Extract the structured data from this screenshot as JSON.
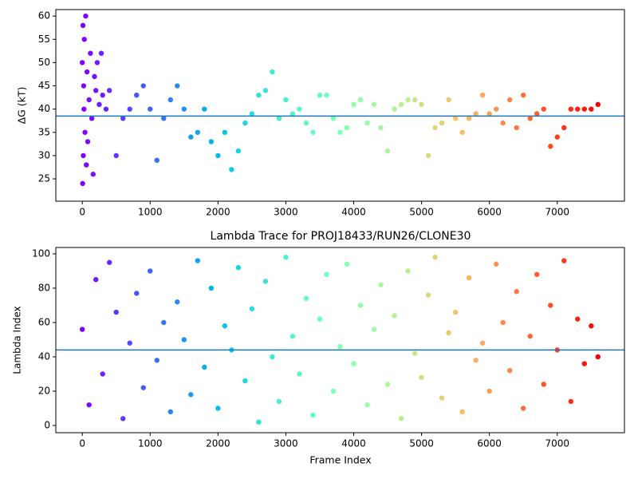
{
  "chart_data": [
    {
      "type": "scatter",
      "ylabel": "ΔG (kT)",
      "colormap": "rainbow",
      "hline": 38.5,
      "hline_color": "#1f77b4",
      "x": [
        0,
        5,
        10,
        15,
        20,
        25,
        30,
        40,
        50,
        60,
        70,
        80,
        100,
        120,
        140,
        160,
        180,
        200,
        220,
        250,
        280,
        300,
        350,
        400,
        500,
        600,
        700,
        800,
        900,
        1000,
        1100,
        1200,
        1300,
        1400,
        1500,
        1600,
        1700,
        1800,
        1900,
        2000,
        2100,
        2200,
        2300,
        2400,
        2500,
        2600,
        2700,
        2800,
        2900,
        3000,
        3100,
        3200,
        3300,
        3400,
        3500,
        3600,
        3700,
        3800,
        3900,
        4000,
        4100,
        4200,
        4300,
        4400,
        4500,
        4600,
        4700,
        4800,
        4900,
        5000,
        5100,
        5200,
        5300,
        5400,
        5500,
        5600,
        5700,
        5800,
        5900,
        6000,
        6100,
        6200,
        6300,
        6400,
        6500,
        6600,
        6700,
        6800,
        6900,
        7000,
        7100,
        7200,
        7300,
        7400,
        7500,
        7600
      ],
      "y": [
        50,
        24,
        58,
        30,
        45,
        40,
        55,
        35,
        60,
        28,
        48,
        33,
        42,
        52,
        38,
        26,
        47,
        44,
        50,
        41,
        52,
        43,
        40,
        44,
        30,
        38,
        40,
        43,
        45,
        40,
        29,
        38,
        42,
        45,
        40,
        34,
        35,
        40,
        33,
        30,
        35,
        27,
        31,
        37,
        39,
        43,
        44,
        48,
        38,
        42,
        39,
        40,
        37,
        35,
        43,
        43,
        38,
        35,
        36,
        41,
        42,
        37,
        41,
        36,
        31,
        40,
        41,
        42,
        42,
        41,
        30,
        36,
        37,
        42,
        38,
        35,
        38,
        39,
        43,
        39,
        40,
        37,
        42,
        36,
        43,
        38,
        39,
        40,
        32,
        34,
        36,
        40,
        40,
        40,
        40,
        41
      ],
      "xlim": [
        -390,
        7990
      ],
      "ylim": [
        20.2,
        61.4
      ],
      "xticks": [
        0,
        1000,
        2000,
        3000,
        4000,
        5000,
        6000,
        7000
      ],
      "yticks": [
        25,
        30,
        35,
        40,
        45,
        50,
        55,
        60
      ]
    },
    {
      "type": "scatter",
      "title": "Lambda Trace for PROJ18433/RUN26/CLONE30",
      "xlabel": "Frame Index",
      "ylabel": "Lambda Index",
      "colormap": "rainbow",
      "hline": 44,
      "hline_color": "#1f77b4",
      "x": [
        0,
        100,
        200,
        300,
        400,
        500,
        600,
        700,
        800,
        900,
        1000,
        1100,
        1200,
        1300,
        1400,
        1500,
        1600,
        1700,
        1800,
        1900,
        2000,
        2100,
        2200,
        2300,
        2400,
        2500,
        2600,
        2700,
        2800,
        2900,
        3000,
        3100,
        3200,
        3300,
        3400,
        3500,
        3600,
        3700,
        3800,
        3900,
        4000,
        4100,
        4200,
        4300,
        4400,
        4500,
        4600,
        4700,
        4800,
        4900,
        5000,
        5100,
        5200,
        5300,
        5400,
        5500,
        5600,
        5700,
        5800,
        5900,
        6000,
        6100,
        6200,
        6300,
        6400,
        6500,
        6600,
        6700,
        6800,
        6900,
        7000,
        7100,
        7200,
        7300,
        7400,
        7500,
        7600
      ],
      "y": [
        56,
        12,
        85,
        30,
        95,
        66,
        4,
        48,
        77,
        22,
        90,
        38,
        60,
        8,
        72,
        50,
        18,
        96,
        34,
        80,
        10,
        58,
        44,
        92,
        26,
        68,
        2,
        84,
        40,
        14,
        98,
        52,
        30,
        74,
        6,
        62,
        88,
        20,
        46,
        94,
        36,
        70,
        12,
        56,
        82,
        24,
        64,
        4,
        90,
        42,
        28,
        76,
        98,
        16,
        54,
        66,
        8,
        86,
        38,
        48,
        20,
        94,
        60,
        32,
        78,
        10,
        52,
        88,
        24,
        70,
        44,
        96,
        14,
        62,
        36,
        58,
        40
      ],
      "xlim": [
        -390,
        7990
      ],
      "ylim": [
        -4.2,
        103.7
      ],
      "xticks": [
        0,
        1000,
        2000,
        3000,
        4000,
        5000,
        6000,
        7000
      ],
      "yticks": [
        0,
        20,
        40,
        60,
        80,
        100
      ]
    }
  ]
}
